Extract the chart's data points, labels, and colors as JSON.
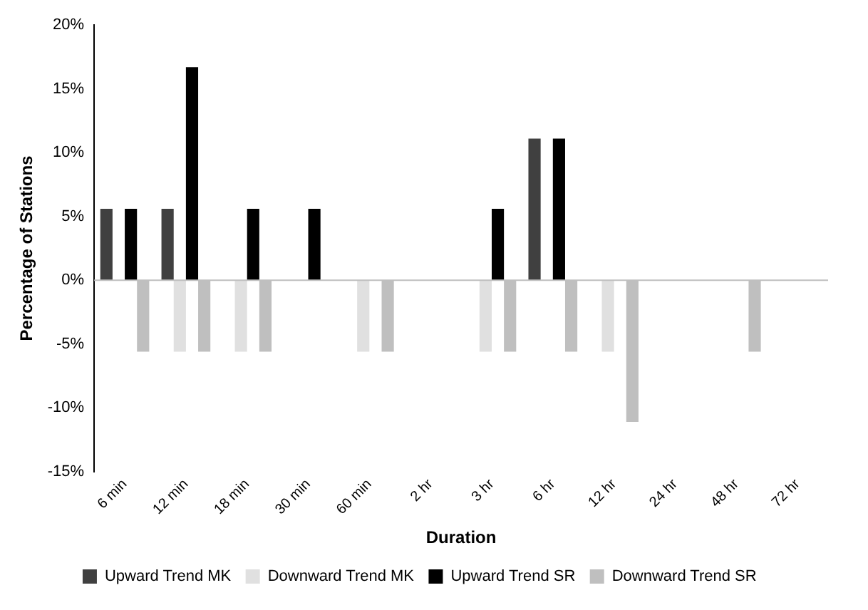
{
  "chart_data": {
    "type": "bar",
    "xlabel": "Duration",
    "ylabel": "Percentage of Stations",
    "legend": "bottom",
    "grid": false,
    "categories": [
      "6 min",
      "12 min",
      "18 min",
      "30 min",
      "60 min",
      "2 hr",
      "3 hr",
      "6 hr",
      "12 hr",
      "24 hr",
      "48 hr",
      "72 hr"
    ],
    "ylim": [
      -15,
      20
    ],
    "ref_lines": [
      {
        "axis": "y",
        "value": 0,
        "color": "#bfbfbf"
      }
    ],
    "yticks": [
      {
        "value": -15,
        "label": "-15%"
      },
      {
        "value": -10,
        "label": "-10%"
      },
      {
        "value": -5,
        "label": "-5%"
      },
      {
        "value": 0,
        "label": "0%"
      },
      {
        "value": 5,
        "label": "5%"
      },
      {
        "value": 10,
        "label": "10%"
      },
      {
        "value": 15,
        "label": "15%"
      },
      {
        "value": 20,
        "label": "20%"
      }
    ],
    "series": [
      {
        "name": "Upward Trend MK",
        "color": "#404040",
        "values": [
          5.6,
          5.6,
          0,
          0,
          0,
          0,
          0,
          11.1,
          0,
          0,
          0,
          0
        ]
      },
      {
        "name": "Downward Trend MK",
        "color": "#e0e0e0",
        "values": [
          0,
          -5.6,
          -5.6,
          0,
          -5.6,
          0,
          -5.6,
          0,
          -5.6,
          0,
          0,
          0
        ]
      },
      {
        "name": "Upward Trend SR",
        "color": "#000000",
        "values": [
          5.6,
          16.7,
          5.6,
          5.6,
          0,
          0,
          5.6,
          11.1,
          0,
          0,
          0,
          0
        ]
      },
      {
        "name": "Downward Trend SR",
        "color": "#bfbfbf",
        "values": [
          -5.6,
          -5.6,
          -5.6,
          0,
          -5.6,
          0,
          -5.6,
          -5.6,
          -11.1,
          0,
          -5.6,
          0
        ]
      }
    ]
  }
}
